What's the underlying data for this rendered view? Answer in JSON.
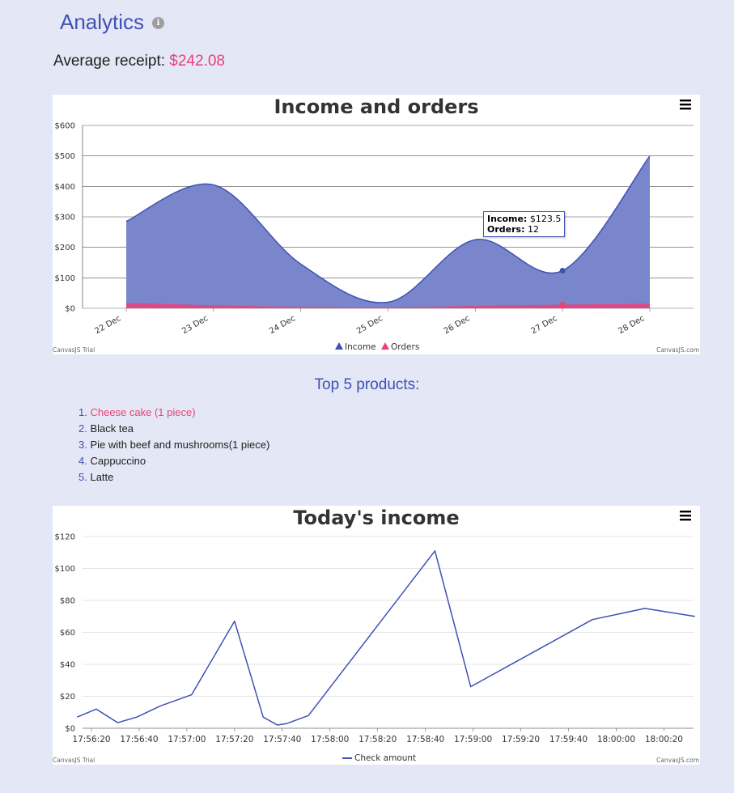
{
  "page": {
    "title": "Analytics",
    "info_icon": "info-icon",
    "avg_label": "Average receipt: ",
    "avg_value": "$242.08",
    "top_products_title": "Top 5 products:",
    "products": [
      {
        "num": "1.",
        "name": "Cheese cake (1 piece)"
      },
      {
        "num": "2.",
        "name": "Black tea"
      },
      {
        "num": "3.",
        "name": "Pie with beef and mushrooms(1 piece)"
      },
      {
        "num": "4.",
        "name": "Cappuccino"
      },
      {
        "num": "5.",
        "name": "Latte"
      }
    ]
  },
  "colors": {
    "accent": "#3f51b5",
    "income_fill": "#7986cb",
    "orders": "#ec407a",
    "background": "#e3e7f6"
  },
  "tooltip": {
    "income_label": "Income:",
    "income_value": "$123.5",
    "orders_label": "Orders:",
    "orders_value": "12"
  },
  "chart_data": [
    {
      "type": "area",
      "title": "Income and orders",
      "menu_icon": "hamburger-menu-icon",
      "x": [
        "22 Dec",
        "23 Dec",
        "24 Dec",
        "25 Dec",
        "26 Dec",
        "27 Dec",
        "28 Dec"
      ],
      "y_ticks": [
        "$0",
        "$100",
        "$200",
        "$300",
        "$400",
        "$500",
        "$600"
      ],
      "ylim": [
        0,
        600
      ],
      "series": [
        {
          "name": "Income",
          "type": "splineArea",
          "values": [
            285,
            405,
            145,
            20,
            225,
            123.5,
            500
          ]
        },
        {
          "name": "Orders",
          "type": "splineArea",
          "values": [
            18,
            10,
            5,
            3,
            8,
            12,
            15
          ]
        }
      ],
      "highlighted_index": 5,
      "legend": "bottom-center",
      "credit_left": "CanvasJS Trial",
      "credit_right": "CanvasJS.com"
    },
    {
      "type": "line",
      "title": "Today's income",
      "menu_icon": "hamburger-menu-icon",
      "x_ticks": [
        "17:56:20",
        "17:56:40",
        "17:57:00",
        "17:57:20",
        "17:57:40",
        "17:58:00",
        "17:58:20",
        "17:58:40",
        "17:59:00",
        "17:59:20",
        "17:59:40",
        "18:00:00",
        "18:00:20"
      ],
      "y_ticks": [
        "$0",
        "$20",
        "$40",
        "$60",
        "$80",
        "$100",
        "$120"
      ],
      "ylim": [
        0,
        120
      ],
      "series": [
        {
          "name": "Check amount",
          "points": [
            [
              "17:56:14",
              7
            ],
            [
              "17:56:22",
              12
            ],
            [
              "17:56:31",
              3.5
            ],
            [
              "17:56:39",
              7
            ],
            [
              "17:56:49",
              14
            ],
            [
              "17:57:02",
              21
            ],
            [
              "17:57:20",
              67
            ],
            [
              "17:57:32",
              7
            ],
            [
              "17:57:38",
              2
            ],
            [
              "17:57:42",
              3
            ],
            [
              "17:57:51",
              8
            ],
            [
              "17:58:44",
              111
            ],
            [
              "17:58:59",
              26
            ],
            [
              "17:59:50",
              68
            ],
            [
              "18:00:12",
              75
            ],
            [
              "18:00:33",
              70
            ]
          ]
        }
      ],
      "legend": "bottom-center",
      "credit_left": "CanvasJS Trial",
      "credit_right": "CanvasJS.com"
    }
  ]
}
